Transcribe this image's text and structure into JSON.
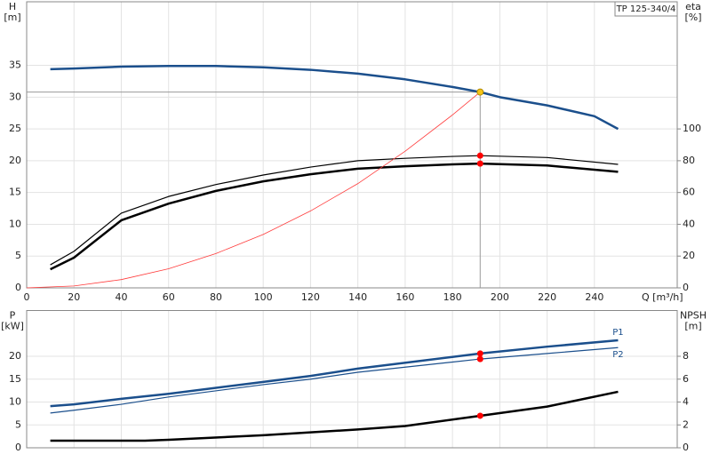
{
  "chart_data": [
    {
      "type": "line",
      "title": "TP 125-340/4",
      "ylabel": "H",
      "yunit": "[m]",
      "y2label": "eta",
      "y2unit": "[%]",
      "xlabel": "Q [m³/h]",
      "xlim": [
        0,
        275
      ],
      "xticks": [
        0,
        20,
        40,
        60,
        80,
        100,
        120,
        140,
        160,
        180,
        200,
        220,
        240
      ],
      "ylim": [
        0,
        45
      ],
      "yticks": [
        0,
        5,
        10,
        15,
        20,
        25,
        30,
        35
      ],
      "y2lim": [
        0,
        180
      ],
      "y2ticks": [
        0,
        20,
        40,
        60,
        80,
        100
      ],
      "grid": true,
      "series": [
        {
          "color": "#1b4f8c",
          "width": 2.5,
          "x": [
            10,
            20,
            40,
            60,
            80,
            100,
            120,
            140,
            160,
            180,
            191.7,
            200,
            220,
            240,
            250
          ],
          "values": [
            34.4,
            34.5,
            34.8,
            34.9,
            34.9,
            34.7,
            34.3,
            33.7,
            32.8,
            31.6,
            30.8,
            30.0,
            28.7,
            27.0,
            25.0
          ]
        },
        {
          "color": "#000000",
          "width": 1.2,
          "axis": "y2",
          "x": [
            10,
            20,
            40,
            60,
            80,
            100,
            120,
            140,
            160,
            180,
            191.7,
            220,
            250
          ],
          "values": [
            14.5,
            23,
            47,
            57.5,
            65,
            71,
            76,
            80,
            81.5,
            82.7,
            83.2,
            82,
            77.7
          ]
        },
        {
          "color": "#000000",
          "width": 2.5,
          "axis": "y2",
          "x": [
            10,
            20,
            40,
            60,
            80,
            100,
            120,
            140,
            160,
            180,
            191.7,
            220,
            250
          ],
          "values": [
            11.7,
            19,
            42.5,
            53,
            61,
            67,
            71.5,
            75,
            76.5,
            77.7,
            78.2,
            77,
            73
          ]
        },
        {
          "color": "#ff3b3b",
          "width": 0.8,
          "x": [
            0,
            20,
            40,
            60,
            80,
            100,
            120,
            140,
            160,
            180,
            191.7
          ],
          "values": [
            0,
            0.3,
            1.3,
            3.0,
            5.4,
            8.4,
            12.1,
            16.4,
            21.5,
            27.2,
            30.8
          ]
        }
      ],
      "markers": [
        {
          "x": 191.7,
          "y": 30.8,
          "color": "#f5c518",
          "guides": true
        },
        {
          "x": 191.7,
          "y": 83.2,
          "axis": "y2",
          "color": "#ff0000"
        },
        {
          "x": 191.7,
          "y": 78.2,
          "axis": "y2",
          "color": "#ff0000"
        }
      ]
    },
    {
      "type": "line",
      "ylabel": "P",
      "yunit": "[kW]",
      "y2label": "NPSH",
      "y2unit": "[m]",
      "xlim": [
        0,
        275
      ],
      "xticks": [
        0,
        20,
        40,
        60,
        80,
        100,
        120,
        140,
        160,
        180,
        200,
        220,
        240
      ],
      "ylim": [
        0,
        30
      ],
      "yticks": [
        0,
        5,
        10,
        15,
        20
      ],
      "y2lim": [
        0,
        12
      ],
      "y2ticks": [
        0,
        2,
        4,
        6,
        8
      ],
      "grid": true,
      "series": [
        {
          "name": "P1",
          "color": "#1b4f8c",
          "width": 2.5,
          "x": [
            10,
            20,
            40,
            60,
            100,
            120,
            140,
            191.7,
            220,
            250
          ],
          "values": [
            9.1,
            9.5,
            10.7,
            11.8,
            14.4,
            15.7,
            17.3,
            20.6,
            22.1,
            23.5
          ]
        },
        {
          "name": "P2",
          "color": "#1b4f8c",
          "width": 1.2,
          "x": [
            10,
            20,
            40,
            60,
            100,
            120,
            140,
            191.7,
            220,
            250
          ],
          "values": [
            7.6,
            8.2,
            9.5,
            11.1,
            13.8,
            15.0,
            16.5,
            19.4,
            20.6,
            21.9
          ]
        },
        {
          "color": "#000000",
          "width": 2.5,
          "axis": "y2",
          "x": [
            10,
            50,
            60,
            100,
            140,
            160,
            191.7,
            220,
            250
          ],
          "values": [
            0.62,
            0.62,
            0.7,
            1.1,
            1.6,
            1.9,
            2.8,
            3.6,
            4.9
          ]
        }
      ],
      "markers": [
        {
          "x": 191.7,
          "y": 20.6,
          "color": "#ff0000"
        },
        {
          "x": 191.7,
          "y": 19.4,
          "color": "#ff0000"
        },
        {
          "x": 191.7,
          "y": 2.8,
          "axis": "y2",
          "color": "#ff0000"
        }
      ]
    }
  ]
}
